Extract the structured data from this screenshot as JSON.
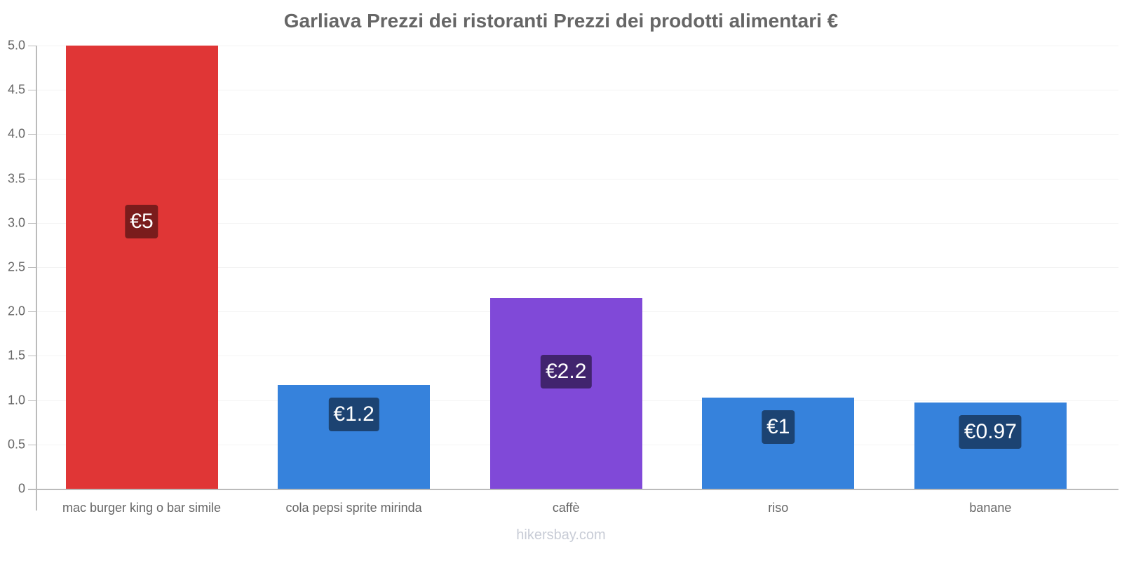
{
  "chart_data": {
    "type": "bar",
    "title": "Garliava Prezzi dei ristoranti Prezzi dei prodotti alimentari €",
    "xlabel": "",
    "ylabel": "",
    "ylim": [
      0,
      5.0
    ],
    "yticks": [
      "0",
      "0.5",
      "1.0",
      "1.5",
      "2.0",
      "2.5",
      "3.0",
      "3.5",
      "4.0",
      "4.5",
      "5.0"
    ],
    "grid": true,
    "legend": null,
    "categories": [
      "mac burger king o bar simile",
      "cola pepsi sprite mirinda",
      "caffè",
      "riso",
      "banane"
    ],
    "values": [
      5.0,
      1.17,
      2.15,
      1.03,
      0.97
    ],
    "value_labels": [
      "€5",
      "€1.2",
      "€2.2",
      "€1",
      "€0.97"
    ],
    "bar_colors": [
      "#e03636",
      "#3682dc",
      "#8049d8",
      "#3682dc",
      "#3682dc"
    ],
    "label_box_colors": [
      "#7a1c1c",
      "#1c4372",
      "#41246e",
      "#1c4372",
      "#1c4372"
    ]
  },
  "watermark": "hikersbay.com"
}
